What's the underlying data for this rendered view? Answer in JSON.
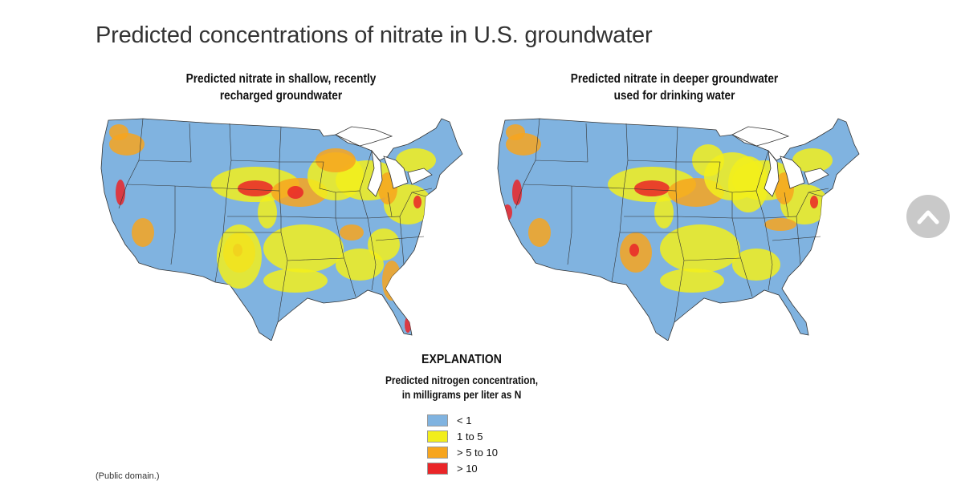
{
  "page": {
    "title": "Predicted concentrations of nitrate in U.S. groundwater",
    "credit": "(Public domain.)"
  },
  "maps": [
    {
      "title_line1": "Predicted nitrate in shallow, recently",
      "title_line2": "recharged groundwater"
    },
    {
      "title_line1": "Predicted nitrate in deeper groundwater",
      "title_line2": "used for drinking water"
    }
  ],
  "legend": {
    "heading": "EXPLANATION",
    "subtitle_line1": "Predicted nitrogen concentration,",
    "subtitle_line2": "in milligrams per liter as N",
    "items": [
      {
        "label": "< 1",
        "color": "#80b3e0"
      },
      {
        "label": "1 to 5",
        "color": "#f2ee1c"
      },
      {
        "label": "> 5 to 10",
        "color": "#f7a51e"
      },
      {
        "label": "> 10",
        "color": "#ea2528"
      }
    ]
  },
  "scroll_top": {
    "icon": "chevron-up-icon"
  }
}
